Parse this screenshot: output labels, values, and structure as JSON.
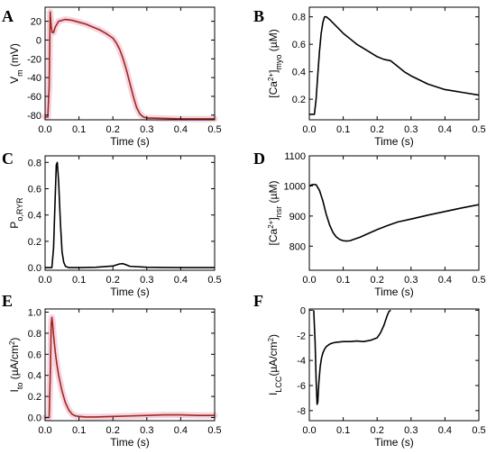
{
  "chart_data": [
    {
      "panel": "A",
      "type": "line",
      "xlabel": "Time (s)",
      "ylabel": {
        "main": "V",
        "sub": "m",
        "rest": " (mV)"
      },
      "xlim": [
        0,
        0.5
      ],
      "ylim": [
        -85,
        35
      ],
      "xticks": [
        0.0,
        0.1,
        0.2,
        0.3,
        0.4,
        0.5
      ],
      "xtick_labels": [
        "0.0",
        "0.1",
        "0.2",
        "0.3",
        "0.4",
        "0.5"
      ],
      "yticks": [
        20,
        0,
        -20,
        -40,
        -60,
        -80
      ],
      "ytick_labels": [
        "20",
        "0",
        "-20",
        "-40",
        "-60",
        "-80"
      ],
      "series": [
        {
          "color": "#a0281a",
          "shade_color": "#f3c9dc",
          "x": [
            0,
            0.008,
            0.012,
            0.015,
            0.018,
            0.021,
            0.025,
            0.03,
            0.04,
            0.06,
            0.08,
            0.1,
            0.12,
            0.14,
            0.16,
            0.18,
            0.2,
            0.21,
            0.22,
            0.23,
            0.24,
            0.25,
            0.26,
            0.27,
            0.28,
            0.29,
            0.3,
            0.35,
            0.4,
            0.45,
            0.5
          ],
          "y": [
            -82,
            -82,
            -50,
            30,
            15,
            8,
            8,
            14,
            20,
            22,
            21,
            19,
            17,
            14,
            11,
            7,
            2,
            -3,
            -10,
            -20,
            -32,
            -46,
            -60,
            -72,
            -79,
            -82,
            -83,
            -83.5,
            -84,
            -84,
            -84
          ]
        }
      ]
    },
    {
      "panel": "B",
      "type": "line",
      "xlabel": "Time (s)",
      "ylabel": {
        "pre": "[Ca",
        "sup": "2+",
        "mid": "]",
        "sub": "myo",
        "rest": " (µM)"
      },
      "xlim": [
        0,
        0.5
      ],
      "ylim": [
        0.05,
        0.87
      ],
      "xticks": [
        0.0,
        0.1,
        0.2,
        0.3,
        0.4,
        0.5
      ],
      "xtick_labels": [
        "0.0",
        "0.1",
        "0.2",
        "0.3",
        "0.4",
        "0.5"
      ],
      "yticks": [
        0.2,
        0.4,
        0.6,
        0.8
      ],
      "ytick_labels": [
        "0.2",
        "0.4",
        "0.6",
        "0.8"
      ],
      "series": [
        {
          "color": "#000000",
          "x": [
            0,
            0.015,
            0.02,
            0.025,
            0.03,
            0.035,
            0.04,
            0.045,
            0.05,
            0.06,
            0.08,
            0.1,
            0.12,
            0.14,
            0.16,
            0.18,
            0.2,
            0.22,
            0.24,
            0.26,
            0.28,
            0.3,
            0.35,
            0.4,
            0.45,
            0.5
          ],
          "y": [
            0.09,
            0.09,
            0.2,
            0.38,
            0.55,
            0.68,
            0.76,
            0.8,
            0.8,
            0.78,
            0.73,
            0.68,
            0.64,
            0.6,
            0.57,
            0.54,
            0.51,
            0.49,
            0.48,
            0.44,
            0.4,
            0.37,
            0.31,
            0.27,
            0.25,
            0.23
          ]
        }
      ]
    },
    {
      "panel": "C",
      "type": "line",
      "xlabel": "Time (s)",
      "ylabel": {
        "main": "P",
        "sub": "o,RYR"
      },
      "xlim": [
        0,
        0.5
      ],
      "ylim": [
        -0.02,
        0.85
      ],
      "xticks": [
        0.0,
        0.1,
        0.2,
        0.3,
        0.4,
        0.5
      ],
      "xtick_labels": [
        "0.0",
        "0.1",
        "0.2",
        "0.3",
        "0.4",
        "0.5"
      ],
      "yticks": [
        0.0,
        0.2,
        0.4,
        0.6,
        0.8
      ],
      "ytick_labels": [
        "0.0",
        "0.2",
        "0.4",
        "0.6",
        "0.8"
      ],
      "series": [
        {
          "color": "#000000",
          "x": [
            0,
            0.02,
            0.025,
            0.03,
            0.033,
            0.036,
            0.04,
            0.045,
            0.05,
            0.055,
            0.06,
            0.07,
            0.08,
            0.1,
            0.15,
            0.2,
            0.21,
            0.22,
            0.23,
            0.24,
            0.25,
            0.3,
            0.35,
            0.4,
            0.45,
            0.5
          ],
          "y": [
            0,
            0,
            0.15,
            0.55,
            0.78,
            0.8,
            0.65,
            0.35,
            0.12,
            0.04,
            0.01,
            0,
            0,
            0,
            0.003,
            0.012,
            0.02,
            0.028,
            0.03,
            0.02,
            0.01,
            0.003,
            0.001,
            0,
            0,
            0
          ]
        }
      ]
    },
    {
      "panel": "D",
      "type": "line",
      "xlabel": "Time (s)",
      "ylabel": {
        "pre": "[Ca",
        "sup": "2+",
        "mid": "]",
        "sub": "nsr",
        "rest": " (µM)"
      },
      "xlim": [
        0,
        0.5
      ],
      "ylim": [
        720,
        1100
      ],
      "xticks": [
        0.0,
        0.1,
        0.2,
        0.3,
        0.4,
        0.5
      ],
      "xtick_labels": [
        "0.0",
        "0.1",
        "0.2",
        "0.3",
        "0.4",
        "0.5"
      ],
      "yticks": [
        800,
        900,
        1000,
        1100
      ],
      "ytick_labels": [
        "800",
        "900",
        "1000",
        "1100"
      ],
      "series": [
        {
          "color": "#000000",
          "x": [
            0,
            0.01,
            0.02,
            0.03,
            0.04,
            0.05,
            0.06,
            0.07,
            0.08,
            0.09,
            0.1,
            0.11,
            0.12,
            0.13,
            0.15,
            0.17,
            0.2,
            0.23,
            0.26,
            0.3,
            0.35,
            0.4,
            0.45,
            0.5
          ],
          "y": [
            1000,
            1005,
            1004,
            985,
            950,
            905,
            870,
            845,
            830,
            822,
            818,
            817,
            818,
            822,
            830,
            840,
            855,
            868,
            880,
            890,
            903,
            915,
            927,
            938
          ]
        }
      ]
    },
    {
      "panel": "E",
      "type": "line",
      "xlabel": "Time (s)",
      "ylabel": {
        "main": "I",
        "sub": "to",
        "rest": " (µA/cm",
        "sup": "2",
        "end": ")"
      },
      "xlim": [
        0,
        0.5
      ],
      "ylim": [
        -0.03,
        1.03
      ],
      "xticks": [
        0.0,
        0.1,
        0.2,
        0.3,
        0.4,
        0.5
      ],
      "xtick_labels": [
        "0.0",
        "0.1",
        "0.2",
        "0.3",
        "0.4",
        "0.5"
      ],
      "yticks": [
        0.0,
        0.2,
        0.4,
        0.6,
        0.8,
        1.0
      ],
      "ytick_labels": [
        "0.0",
        "0.2",
        "0.4",
        "0.6",
        "0.8",
        "1.0"
      ],
      "series": [
        {
          "color": "#a0281a",
          "shade_color": "#f3c9dc",
          "x": [
            0,
            0.012,
            0.016,
            0.018,
            0.02,
            0.022,
            0.025,
            0.03,
            0.035,
            0.04,
            0.05,
            0.06,
            0.07,
            0.08,
            0.09,
            0.1,
            0.12,
            0.15,
            0.2,
            0.25,
            0.3,
            0.35,
            0.4,
            0.45,
            0.5
          ],
          "y": [
            0,
            0,
            0.5,
            0.88,
            0.95,
            0.9,
            0.78,
            0.62,
            0.5,
            0.4,
            0.25,
            0.14,
            0.07,
            0.03,
            0.015,
            0.01,
            0.005,
            0.005,
            0.01,
            0.015,
            0.02,
            0.025,
            0.025,
            0.02,
            0.02
          ]
        }
      ]
    },
    {
      "panel": "F",
      "type": "line",
      "xlabel": "Time (s)",
      "ylabel": {
        "main": "I",
        "sub": "LCC",
        "rest": "(µA/cm",
        "sup": "2",
        "end": ")"
      },
      "xlim": [
        0,
        0.5
      ],
      "ylim": [
        -8.8,
        0.1
      ],
      "xticks": [
        0.0,
        0.1,
        0.2,
        0.3,
        0.4,
        0.5
      ],
      "xtick_labels": [
        "0.0",
        "0.1",
        "0.2",
        "0.3",
        "0.4",
        "0.5"
      ],
      "yticks": [
        0,
        -2,
        -4,
        -6,
        -8
      ],
      "ytick_labels": [
        "0",
        "-2",
        "-4",
        "-6",
        "-8"
      ],
      "series": [
        {
          "color": "#000000",
          "x": [
            0.013,
            0.017,
            0.02,
            0.023,
            0.025,
            0.028,
            0.032,
            0.036,
            0.04,
            0.045,
            0.05,
            0.06,
            0.07,
            0.08,
            0.1,
            0.12,
            0.14,
            0.16,
            0.18,
            0.2,
            0.21,
            0.22,
            0.225,
            0.23,
            0.235,
            0.24
          ],
          "y": [
            0,
            -2.5,
            -5.5,
            -7.5,
            -7.3,
            -5.8,
            -4.5,
            -3.8,
            -3.4,
            -3.1,
            -2.9,
            -2.7,
            -2.6,
            -2.55,
            -2.5,
            -2.5,
            -2.45,
            -2.5,
            -2.4,
            -2.2,
            -1.8,
            -1.2,
            -0.8,
            -0.4,
            -0.1,
            0
          ]
        }
      ]
    }
  ]
}
